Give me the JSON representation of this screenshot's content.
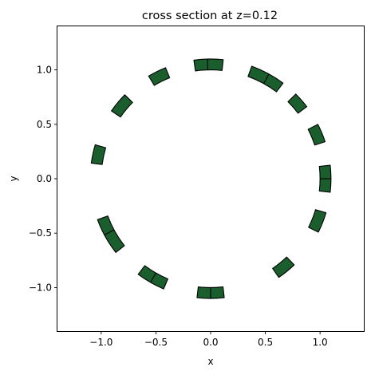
{
  "chart_data": {
    "type": "scatter",
    "title": "cross section at z=0.12",
    "xlabel": "x",
    "ylabel": "y",
    "xlim": [
      -1.4,
      1.4
    ],
    "ylim": [
      -1.4,
      1.4
    ],
    "xticks": [
      -1.0,
      -0.5,
      0.0,
      0.5,
      1.0
    ],
    "yticks": [
      -1.0,
      -0.5,
      0.0,
      0.5,
      1.0
    ],
    "xtick_labels": [
      "−1.0",
      "−0.5",
      "0.0",
      "0.5",
      "1.0"
    ],
    "ytick_labels": [
      "−1.0",
      "−0.5",
      "0.0",
      "0.5",
      "1.0"
    ],
    "grid": false,
    "aspect": "equal",
    "colors": {
      "segment_fill": "#1a5e2e",
      "segment_edge": "#000000"
    },
    "ring": {
      "inner_radius": 1.0,
      "outer_radius": 1.1
    },
    "segments": [
      {
        "start_deg": 84.0,
        "end_deg": 98.0,
        "dividers_deg": [
          91.5
        ]
      },
      {
        "start_deg": 53.0,
        "end_deg": 70.0,
        "dividers_deg": [
          61.0
        ]
      },
      {
        "start_deg": 112.0,
        "end_deg": 121.0,
        "dividers_deg": []
      },
      {
        "start_deg": 135.5,
        "end_deg": 145.5,
        "dividers_deg": []
      },
      {
        "start_deg": 37.0,
        "end_deg": 45.0,
        "dividers_deg": []
      },
      {
        "start_deg": 18.0,
        "end_deg": 27.0,
        "dividers_deg": []
      },
      {
        "start_deg": -6.5,
        "end_deg": 6.5,
        "dividers_deg": [
          0.0
        ]
      },
      {
        "start_deg": 163.5,
        "end_deg": 172.5,
        "dividers_deg": []
      },
      {
        "start_deg": 200.0,
        "end_deg": 218.0,
        "dividers_deg": [
          208.0
        ]
      },
      {
        "start_deg": 233.0,
        "end_deg": 247.0,
        "dividers_deg": [
          240.0
        ]
      },
      {
        "start_deg": 263.5,
        "end_deg": 276.5,
        "dividers_deg": [
          270.0
        ]
      },
      {
        "start_deg": 304.5,
        "end_deg": 314.0,
        "dividers_deg": []
      },
      {
        "start_deg": 333.5,
        "end_deg": 343.5,
        "dividers_deg": []
      }
    ]
  }
}
